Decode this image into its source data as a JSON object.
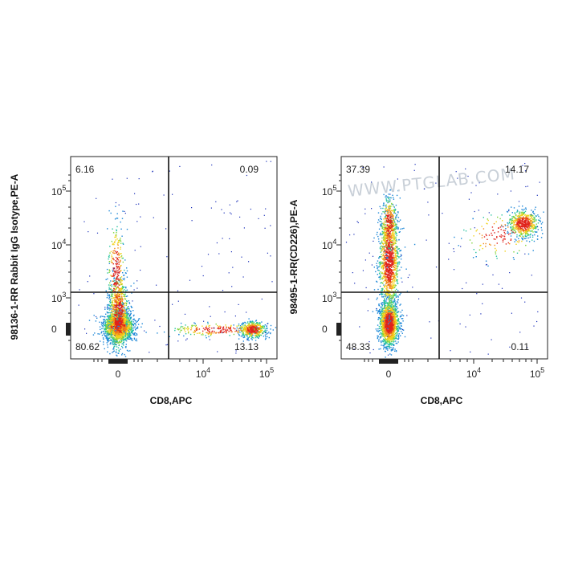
{
  "chart_data": [
    {
      "type": "scatter",
      "xlabel": "CD8,APC",
      "ylabel": "98136-1-RR Rabbit IgG Isotype,PE-A",
      "x_ticks": [
        "0",
        "10^4",
        "10^5"
      ],
      "y_ticks": [
        "0",
        "10^3",
        "10^4",
        "10^5"
      ],
      "quadrants": {
        "upper_left": "6.16",
        "upper_right": "0.09",
        "lower_left": "80.62",
        "lower_right": "13.13"
      },
      "grid": false,
      "populations": [
        {
          "name": "",
          "x": 0,
          "y": 0,
          "density": "high",
          "count": 2600
        },
        {
          "name": "",
          "x": 0,
          "y": 6000,
          "density": "low",
          "count": 300
        },
        {
          "name": "",
          "x": 60000,
          "y": 0,
          "density": "medium",
          "count": 700
        }
      ]
    },
    {
      "type": "scatter",
      "xlabel": "CD8,APC",
      "ylabel": "98495-1-RR(CD226),PE-A",
      "x_ticks": [
        "0",
        "10^4",
        "10^5"
      ],
      "y_ticks": [
        "0",
        "10^3",
        "10^4",
        "10^5"
      ],
      "quadrants": {
        "upper_left": "37.39",
        "upper_right": "14.17",
        "lower_left": "48.33",
        "lower_right": "0.11"
      },
      "grid": false,
      "watermark": "WWW.PTGLAB.COM",
      "populations": [
        {
          "name": "",
          "x": 0,
          "y": 0,
          "density": "high",
          "count": 1500
        },
        {
          "name": "",
          "x": 0,
          "y": 6000,
          "density": "high",
          "count": 1200
        },
        {
          "name": "",
          "x": 60000,
          "y": 25000,
          "density": "medium",
          "count": 700
        }
      ]
    }
  ]
}
